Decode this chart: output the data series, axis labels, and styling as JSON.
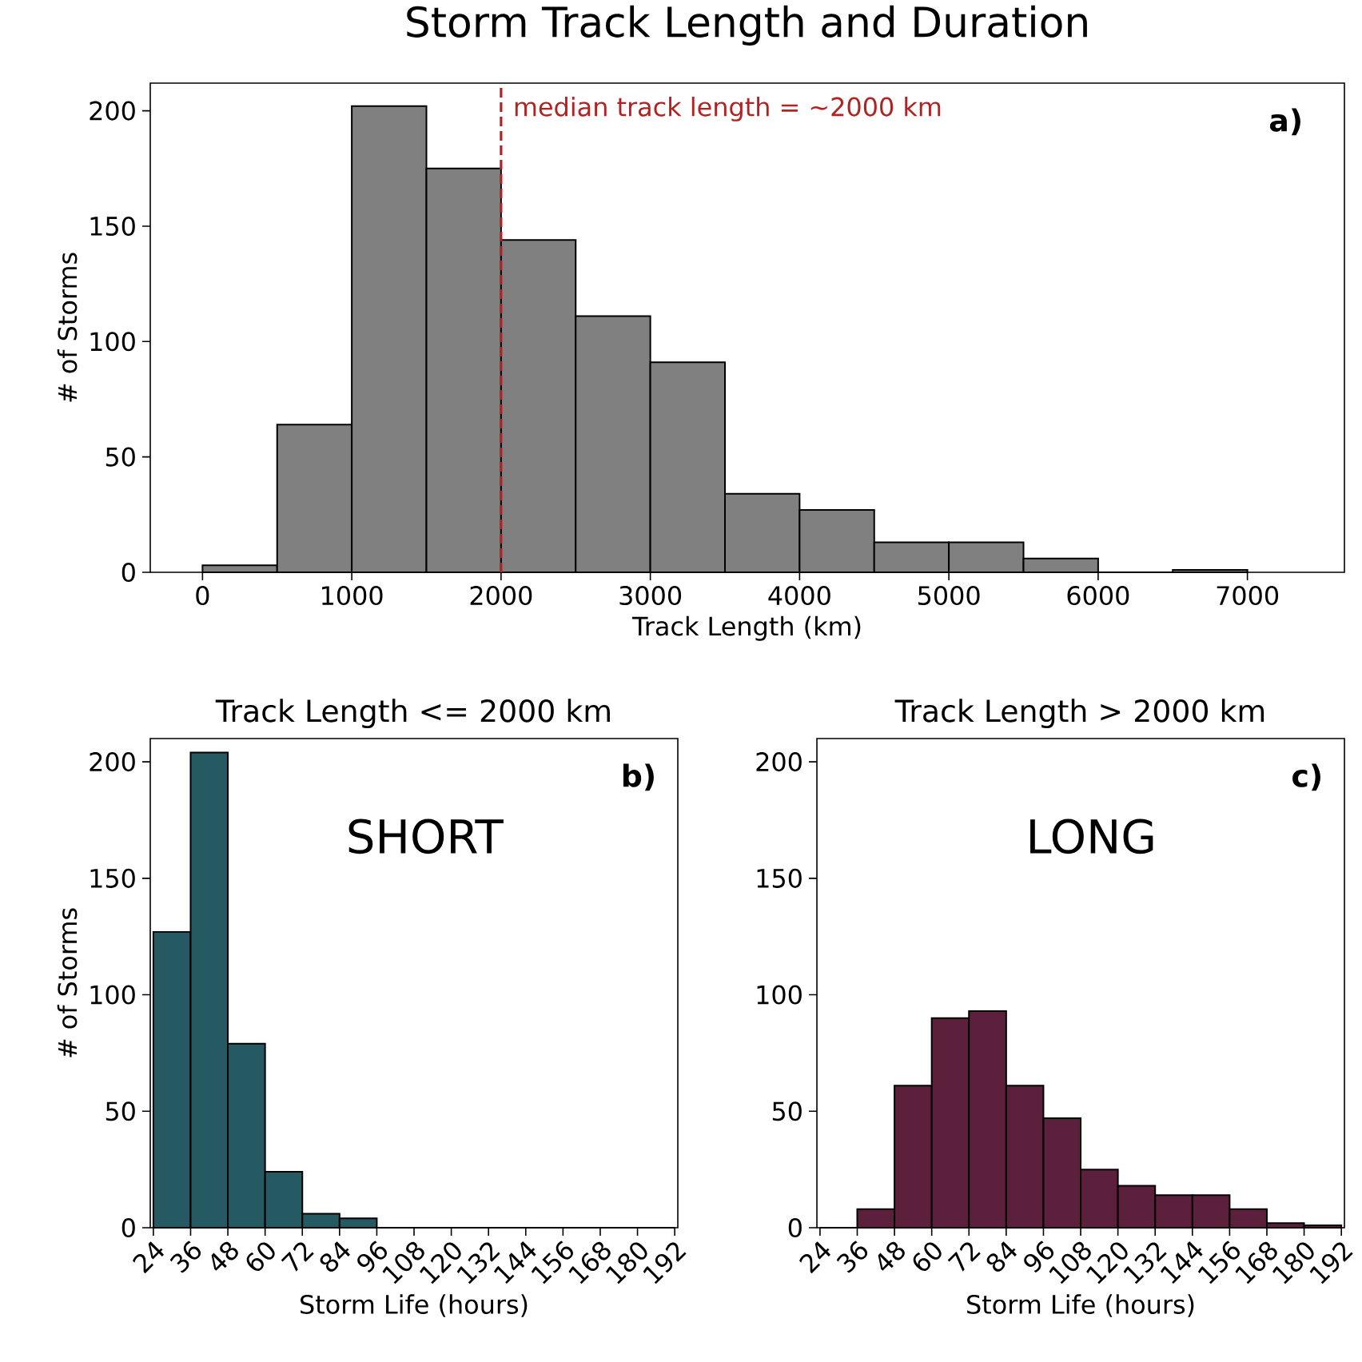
{
  "chart_data": [
    {
      "type": "histogram",
      "title": "Storm Track Length and Duration",
      "xlabel": "Track Length (km)",
      "ylabel": "# of Storms",
      "color": "#808080",
      "bins": [
        0,
        500,
        1000,
        1500,
        2000,
        2500,
        3000,
        3500,
        4000,
        4500,
        5000,
        5500,
        6000,
        6500,
        7000
      ],
      "values": [
        3,
        64,
        202,
        175,
        144,
        111,
        91,
        34,
        27,
        13,
        13,
        6,
        0,
        1
      ],
      "xlim": [
        -350,
        7650
      ],
      "ylim": [
        0,
        212
      ],
      "xticks": [
        0,
        1000,
        2000,
        3000,
        4000,
        5000,
        6000,
        7000
      ],
      "yticks": [
        0,
        50,
        100,
        150,
        200
      ],
      "ref_lines": [
        {
          "axis": "x",
          "value": 2000,
          "label": "median track length = ~2000 km",
          "color": "#b22222",
          "line_style": "dashed"
        }
      ],
      "annotations": [
        "a)"
      ]
    },
    {
      "type": "histogram",
      "title": "Track Length <= 2000 km",
      "xlabel": "Storm Life (hours)",
      "ylabel": "# of Storms",
      "color": "#255a63",
      "bins": [
        24,
        36,
        48,
        60,
        72,
        84,
        96,
        108,
        120,
        132,
        144,
        156,
        168,
        180,
        192
      ],
      "values": [
        127,
        204,
        79,
        24,
        6,
        4,
        0,
        0,
        0,
        0,
        0,
        0,
        0,
        0
      ],
      "xlim": [
        23,
        193
      ],
      "ylim": [
        0,
        210
      ],
      "xticks": [
        24,
        36,
        48,
        60,
        72,
        84,
        96,
        108,
        120,
        132,
        144,
        156,
        168,
        180,
        192
      ],
      "yticks": [
        0,
        50,
        100,
        150,
        200
      ],
      "annotations": [
        "b)",
        "SHORT"
      ]
    },
    {
      "type": "histogram",
      "title": "Track Length > 2000 km",
      "xlabel": "Storm Life (hours)",
      "color": "#5c1f3c",
      "bins": [
        24,
        36,
        48,
        60,
        72,
        84,
        96,
        108,
        120,
        132,
        144,
        156,
        168,
        180,
        192
      ],
      "values": [
        0,
        8,
        61,
        90,
        93,
        61,
        47,
        25,
        18,
        14,
        14,
        8,
        2,
        1
      ],
      "xlim": [
        23,
        193
      ],
      "ylim": [
        0,
        210
      ],
      "xticks": [
        24,
        36,
        48,
        60,
        72,
        84,
        96,
        108,
        120,
        132,
        144,
        156,
        168,
        180,
        192
      ],
      "yticks": [
        0,
        50,
        100,
        150,
        200
      ],
      "annotations": [
        "c)",
        "LONG"
      ]
    }
  ]
}
